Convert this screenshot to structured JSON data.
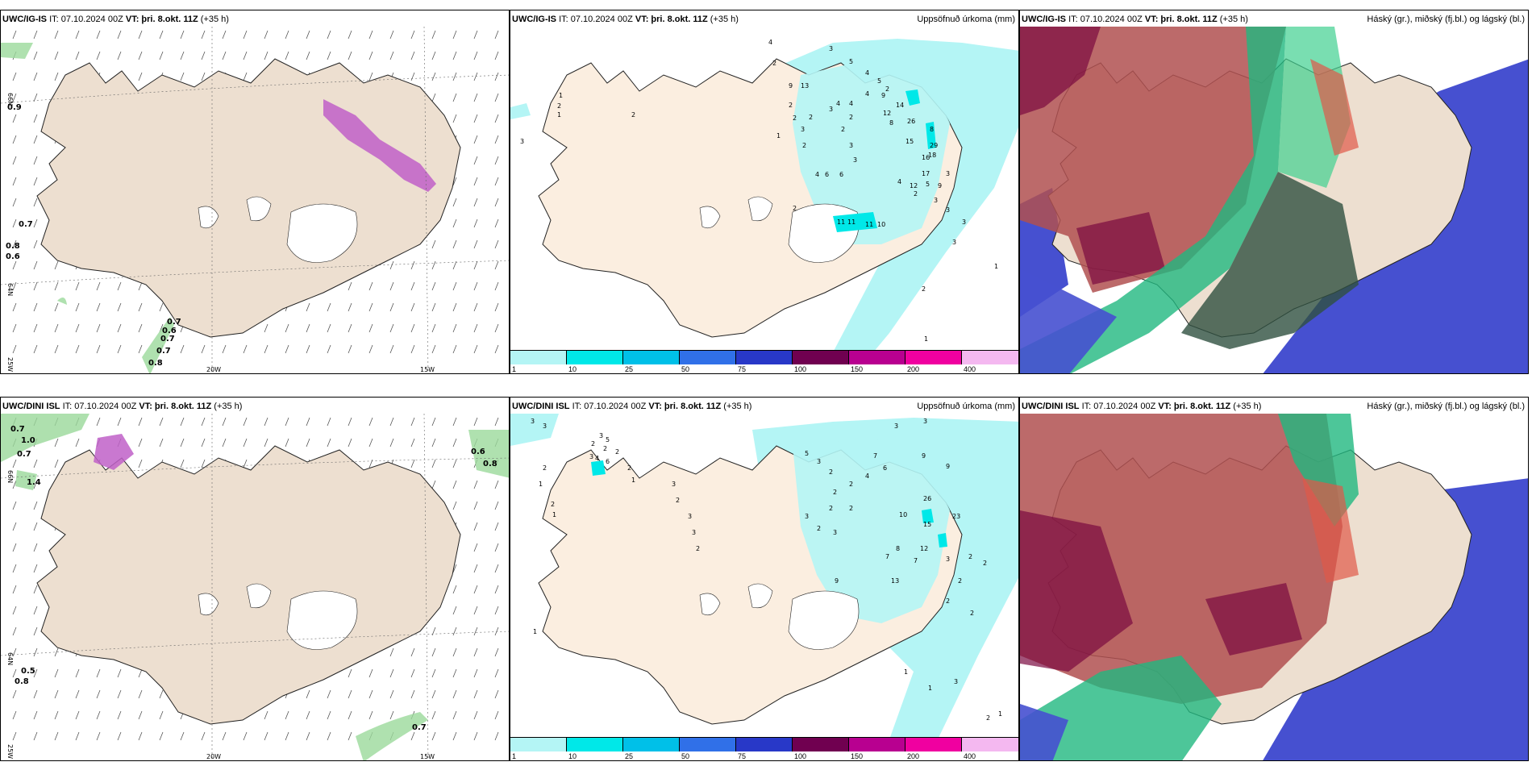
{
  "panels": {
    "top_left": {
      "model": "UWC/IG-IS",
      "it": "IT: 07.10.2024 00Z",
      "vt": "VT: þri. 8.okt. 11Z",
      "lead": "(+35 h)"
    },
    "top_mid": {
      "model": "UWC/IG-IS",
      "it": "IT: 07.10.2024 00Z",
      "vt": "VT: þri. 8.okt. 11Z",
      "lead": "(+35 h)",
      "field": "Uppsöfnuð úrkoma (mm)"
    },
    "top_right": {
      "model": "UWC/IG-IS",
      "it": "IT: 07.10.2024 00Z",
      "vt": "VT: þri. 8.okt. 11Z",
      "lead": "(+35 h)",
      "field": "Háský (gr.), miðský (fj.bl.) og lágský (bl.)"
    },
    "bot_left": {
      "model": "UWC/DINI ISL",
      "it": "IT: 07.10.2024 00Z",
      "vt": "VT: þri. 8.okt. 11Z",
      "lead": "(+35 h)"
    },
    "bot_mid": {
      "model": "UWC/DINI ISL",
      "it": "IT: 07.10.2024 00Z",
      "vt": "VT: þri. 8.okt. 11Z",
      "lead": "(+35 h)",
      "field": "Uppsöfnuð úrkoma (mm)"
    },
    "bot_right": {
      "model": "UWC/DINI ISL",
      "it": "IT: 07.10.2024 00Z",
      "vt": "VT: þri. 8.okt. 11Z",
      "lead": "(+35 h)",
      "field": "Háský (gr.), miðský (fj.bl.) og lágský (bl.)"
    }
  },
  "axis": {
    "lat66": "66N",
    "lat64": "64N",
    "lon20": "20W",
    "lon15": "15W",
    "lon25": "25W"
  },
  "colorbar": {
    "labels": [
      "1",
      "10",
      "25",
      "50",
      "75",
      "100",
      "150",
      "200",
      "400"
    ],
    "colors": [
      "#b4f5f5",
      "#00e8e8",
      "#00c0e8",
      "#3070e8",
      "#2838c8",
      "#700050",
      "#b80090",
      "#f000a0",
      "#f4b8f0"
    ]
  },
  "top_left_values": [
    "0.9",
    "0.7",
    "0.8",
    "0.6",
    "0.7",
    "0.6",
    "0.7",
    "0.7",
    "0.8"
  ],
  "bot_left_values": [
    "0.7",
    "1.0",
    "0.7",
    "1.4",
    "0.6",
    "0.8",
    "0.5",
    "0.8",
    "0.7"
  ],
  "top_mid_values": [
    "3",
    "1",
    "2",
    "1",
    "2",
    "4",
    "2",
    "9",
    "13",
    "3",
    "5",
    "4",
    "5",
    "2",
    "4",
    "14",
    "12",
    "29",
    "8",
    "15",
    "18",
    "26",
    "16",
    "3",
    "3",
    "2",
    "4",
    "17",
    "12",
    "5",
    "9",
    "3",
    "11",
    "11",
    "11",
    "10",
    "3",
    "3",
    "1",
    "2",
    "1",
    "2",
    "2",
    "3",
    "2",
    "4",
    "6",
    "6",
    "2",
    "3",
    "2",
    "3",
    "3",
    "2",
    "4",
    "4",
    "1",
    "2",
    "8",
    "9"
  ],
  "bot_mid_values": [
    "3",
    "3",
    "2",
    "1",
    "2",
    "1",
    "2",
    "2",
    "4",
    "6",
    "3",
    "3",
    "5",
    "2",
    "2",
    "1",
    "3",
    "3",
    "9",
    "9",
    "26",
    "23",
    "15",
    "12",
    "8",
    "7",
    "3",
    "2",
    "2",
    "2",
    "2",
    "1",
    "1",
    "1",
    "3",
    "9",
    "13",
    "3",
    "2",
    "3",
    "3",
    "2",
    "5",
    "3",
    "2",
    "3",
    "2",
    "7",
    "6",
    "4",
    "2",
    "2",
    "10",
    "2",
    "2",
    "3",
    "7",
    "2",
    "2",
    "1"
  ]
}
